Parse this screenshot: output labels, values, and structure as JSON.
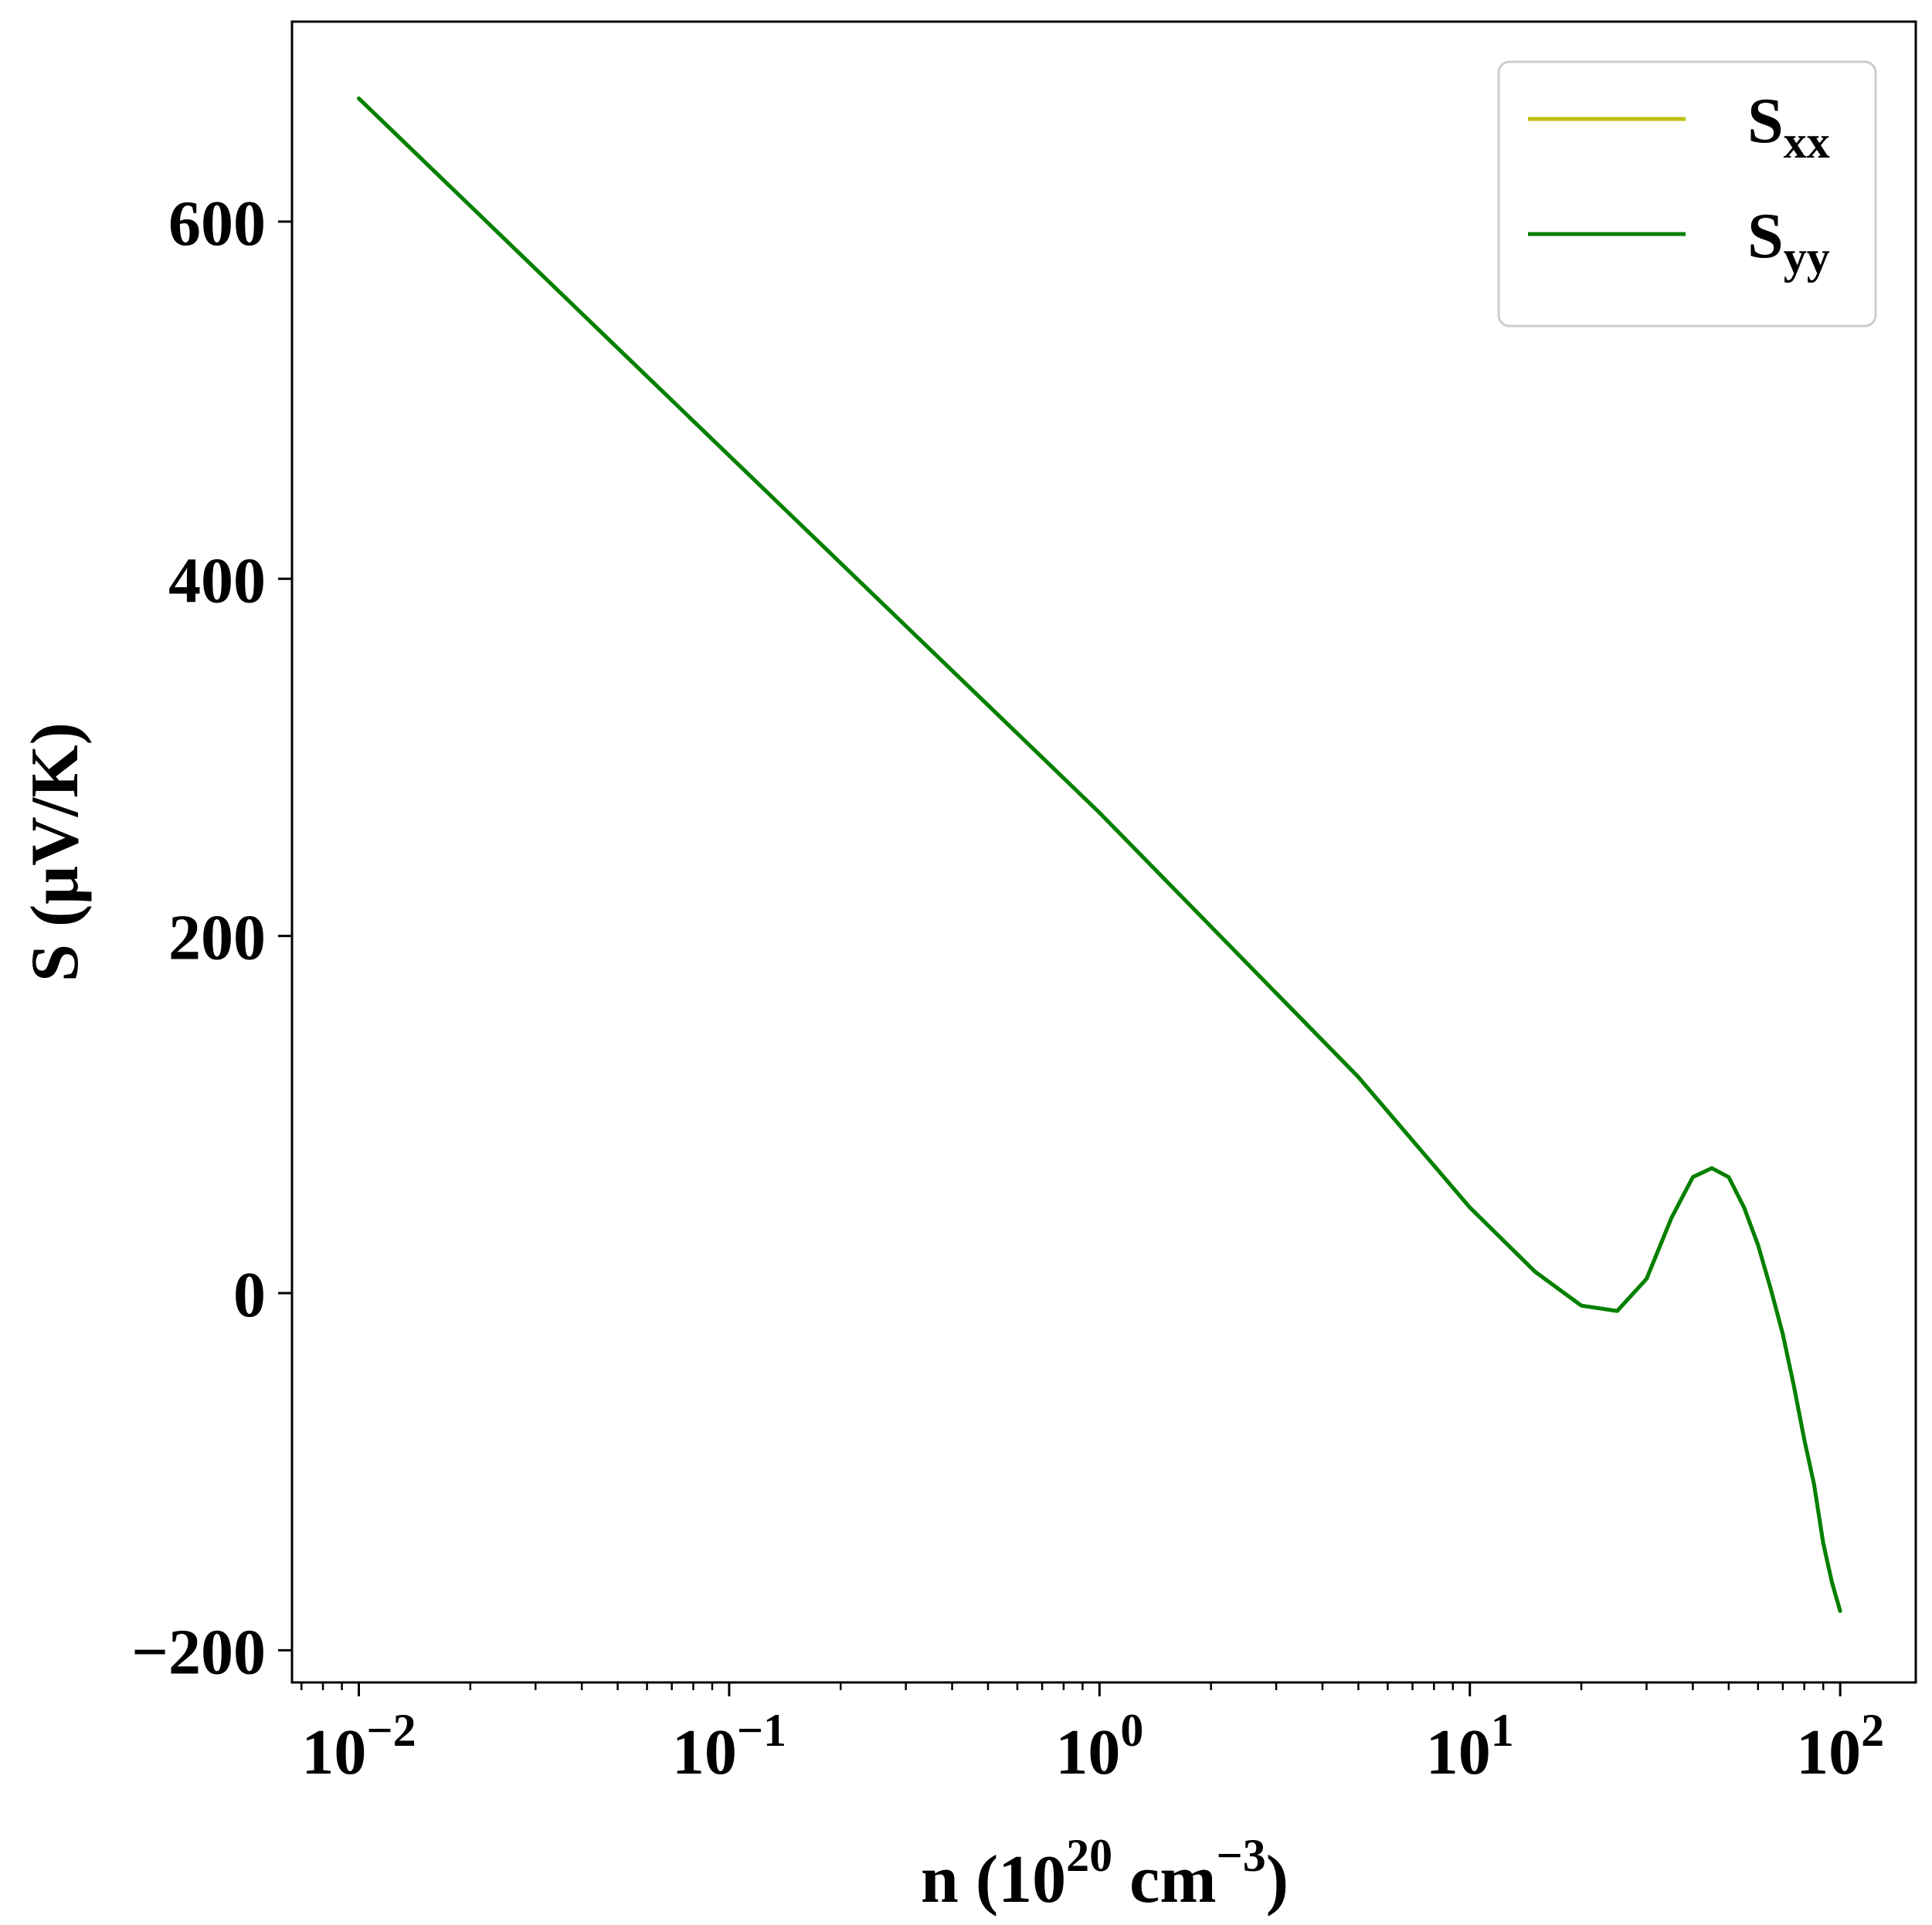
{
  "chart_data": {
    "type": "line",
    "xlabel": {
      "prefix": "n (10",
      "exp1": "20",
      "mid": " cm",
      "exp2": "−3",
      "suffix": ")"
    },
    "ylabel": "S (μV/K)",
    "xscale": "log",
    "xlim": [
      0.0066,
      160
    ],
    "ylim": [
      -218,
      712
    ],
    "grid": false,
    "legend_position": "top-right",
    "x_ticks": [
      {
        "value": 0.01,
        "base": "10",
        "exp": "−2"
      },
      {
        "value": 0.1,
        "base": "10",
        "exp": "−1"
      },
      {
        "value": 1,
        "base": "10",
        "exp": "0"
      },
      {
        "value": 10,
        "base": "10",
        "exp": "1"
      },
      {
        "value": 100,
        "base": "10",
        "exp": "2"
      }
    ],
    "y_ticks": [
      {
        "value": -200,
        "label": "−200"
      },
      {
        "value": 0,
        "label": "0"
      },
      {
        "value": 200,
        "label": "200"
      },
      {
        "value": 400,
        "label": "400"
      },
      {
        "value": 600,
        "label": "600"
      }
    ],
    "series": [
      {
        "name": "S",
        "sub": "xx",
        "color": "#bfbf00",
        "x": [
          0.01,
          0.1,
          1,
          5,
          10,
          15,
          20,
          25,
          30,
          35,
          40,
          45,
          50,
          55,
          60,
          65,
          70,
          75,
          80,
          85,
          90,
          95,
          100
        ],
        "y": [
          669,
          469,
          269,
          121,
          48,
          12,
          -7,
          -10,
          8,
          42,
          65,
          70,
          65,
          48,
          27,
          2,
          -23,
          -52,
          -82,
          -107,
          -140,
          -162,
          -178
        ]
      },
      {
        "name": "S",
        "sub": "yy",
        "color": "#008000",
        "x": [
          0.01,
          0.1,
          1,
          5,
          10,
          15,
          20,
          25,
          30,
          35,
          40,
          45,
          50,
          55,
          60,
          65,
          70,
          75,
          80,
          85,
          90,
          95,
          100
        ],
        "y": [
          669,
          469,
          269,
          121,
          48,
          12,
          -7,
          -10,
          8,
          42,
          65,
          70,
          65,
          48,
          27,
          2,
          -23,
          -52,
          -82,
          -107,
          -140,
          -162,
          -178
        ]
      }
    ]
  }
}
